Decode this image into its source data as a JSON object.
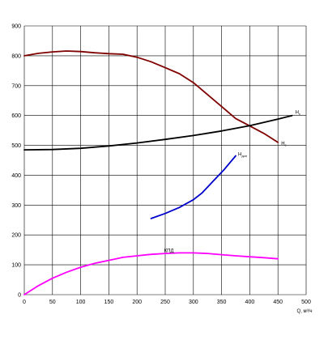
{
  "chart_data": {
    "type": "line",
    "title": "",
    "xlabel": "Q, м³/ч",
    "ylabel": "",
    "xlim": [
      0,
      500
    ],
    "ylim": [
      0,
      900
    ],
    "x_ticks": [
      0,
      50,
      100,
      150,
      200,
      250,
      300,
      350,
      400,
      450,
      500
    ],
    "y_ticks": [
      0,
      100,
      200,
      300,
      400,
      500,
      600,
      700,
      800,
      900
    ],
    "grid": true,
    "series": [
      {
        "name": "Н",
        "subscript": "c",
        "color": "#800000",
        "x": [
          0,
          25,
          50,
          75,
          100,
          125,
          150,
          175,
          200,
          225,
          250,
          275,
          300,
          325,
          350,
          375,
          400,
          425,
          450
        ],
        "y": [
          800,
          808,
          813,
          816,
          814,
          810,
          807,
          805,
          795,
          780,
          760,
          740,
          710,
          670,
          630,
          590,
          565,
          540,
          510
        ]
      },
      {
        "name": "Н",
        "subscript": "c",
        "color": "#000000",
        "x": [
          0,
          50,
          100,
          150,
          200,
          250,
          300,
          350,
          400,
          450,
          475
        ],
        "y": [
          485,
          486,
          490,
          498,
          508,
          520,
          533,
          548,
          566,
          588,
          600
        ]
      },
      {
        "name": "Н",
        "subscript": "доп",
        "color": "#0000cc",
        "x": [
          225,
          250,
          275,
          300,
          315,
          335,
          355,
          375
        ],
        "y": [
          255,
          272,
          292,
          318,
          340,
          380,
          420,
          465
        ]
      },
      {
        "name": "КПД",
        "subscript": "",
        "color": "#ff00ff",
        "x": [
          0,
          25,
          50,
          75,
          100,
          125,
          150,
          175,
          200,
          225,
          250,
          275,
          300,
          325,
          350,
          375,
          400,
          425,
          450
        ],
        "y": [
          0,
          30,
          55,
          75,
          92,
          105,
          115,
          125,
          130,
          135,
          138,
          140,
          140,
          138,
          134,
          130,
          127,
          124,
          120
        ]
      }
    ]
  }
}
